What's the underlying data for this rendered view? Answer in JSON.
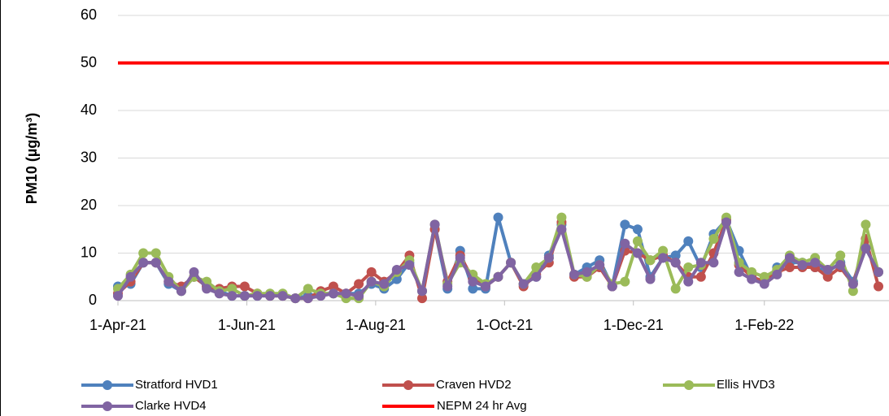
{
  "chart_data": {
    "type": "line",
    "y_label": "PM10 (µg/m³)",
    "x": [
      "2021-04-01",
      "2021-04-07",
      "2021-04-13",
      "2021-04-19",
      "2021-04-25",
      "2021-05-01",
      "2021-05-07",
      "2021-05-13",
      "2021-05-19",
      "2021-05-25",
      "2021-05-31",
      "2021-06-06",
      "2021-06-12",
      "2021-06-18",
      "2021-06-24",
      "2021-06-30",
      "2021-07-06",
      "2021-07-12",
      "2021-07-18",
      "2021-07-24",
      "2021-07-30",
      "2021-08-05",
      "2021-08-11",
      "2021-08-17",
      "2021-08-23",
      "2021-08-29",
      "2021-09-04",
      "2021-09-10",
      "2021-09-16",
      "2021-09-22",
      "2021-09-28",
      "2021-10-04",
      "2021-10-10",
      "2021-10-16",
      "2021-10-22",
      "2021-10-28",
      "2021-11-03",
      "2021-11-09",
      "2021-11-15",
      "2021-11-21",
      "2021-11-27",
      "2021-12-03",
      "2021-12-09",
      "2021-12-15",
      "2021-12-21",
      "2021-12-27",
      "2022-01-02",
      "2022-01-08",
      "2022-01-14",
      "2022-01-20",
      "2022-01-26",
      "2022-02-01",
      "2022-02-07",
      "2022-02-13",
      "2022-02-19",
      "2022-02-25",
      "2022-03-03",
      "2022-03-09",
      "2022-03-15",
      "2022-03-21",
      "2022-03-27"
    ],
    "series": [
      {
        "name": "Stratford HVD1",
        "color": "#4f81bd",
        "values": [
          3,
          3.5,
          8,
          8,
          3.5,
          2,
          5,
          3,
          2,
          1,
          1,
          1,
          1,
          1,
          0.5,
          1,
          1.5,
          1.5,
          1.5,
          1.5,
          3.5,
          2.5,
          4.5,
          8,
          2,
          15,
          2.5,
          10.5,
          2.5,
          2.5,
          17.5,
          8,
          3.5,
          5,
          9.5,
          16,
          5.5,
          7,
          8.5,
          3,
          16,
          15,
          5,
          9,
          9.5,
          12.5,
          7,
          14,
          17,
          10.5,
          5,
          4,
          7,
          8,
          8,
          7,
          6,
          8,
          4,
          11,
          6
        ]
      },
      {
        "name": "Craven HVD2",
        "color": "#c0504d",
        "values": [
          1.5,
          4,
          8,
          8,
          4,
          3,
          5,
          3,
          2.5,
          3,
          3,
          1.5,
          1,
          1,
          0.5,
          0.5,
          2,
          3,
          1.5,
          3.5,
          6,
          4,
          6,
          9.5,
          0.5,
          15,
          4,
          9.5,
          4.5,
          3,
          5,
          8,
          3,
          5.5,
          8,
          16.5,
          5,
          5,
          7,
          3,
          10.5,
          10,
          8.5,
          9.5,
          8,
          5,
          5,
          10,
          17,
          7.5,
          5,
          4,
          6,
          7,
          7,
          7,
          5,
          7,
          3.5,
          13,
          3
        ]
      },
      {
        "name": "Ellis HVD3",
        "color": "#9bbb59",
        "values": [
          2.5,
          5.5,
          10,
          10,
          5,
          2,
          5,
          4,
          2,
          2.5,
          1,
          1.5,
          1.5,
          1.5,
          0.5,
          2.5,
          1.5,
          1.5,
          0.5,
          0.5,
          4,
          3,
          6,
          8.5,
          2,
          16,
          3.5,
          8,
          5.5,
          3.5,
          5,
          8,
          3.5,
          7,
          9,
          17.5,
          5.5,
          5,
          7.5,
          3.5,
          4,
          12.5,
          8.5,
          10.5,
          2.5,
          7,
          7.5,
          13,
          17.5,
          8,
          6,
          5,
          6.5,
          9.5,
          8,
          9,
          6.5,
          9.5,
          2,
          16,
          6
        ]
      },
      {
        "name": "Clarke HVD4",
        "color": "#8064a2",
        "values": [
          1,
          5,
          8,
          8,
          4,
          2,
          6,
          2.5,
          1.5,
          1,
          1,
          1,
          1,
          1,
          0.5,
          0.5,
          1,
          1.5,
          1.5,
          1,
          4,
          3.5,
          6.5,
          7.5,
          2,
          16,
          3,
          9,
          4,
          3,
          5,
          8,
          3.5,
          5,
          9,
          15,
          5.5,
          6,
          7.5,
          3,
          12,
          10,
          4.5,
          9,
          8,
          4,
          8,
          8,
          16.5,
          6,
          4.5,
          3.5,
          5.5,
          9,
          7.5,
          8,
          6.5,
          7.5,
          3.5,
          11,
          6
        ]
      }
    ],
    "reference_line": {
      "name": "NEPM 24 hr Avg",
      "color": "#ff0000",
      "value": 50
    },
    "xlim": [
      "2021-04-01",
      "2022-04-01"
    ],
    "xticks": [
      {
        "value": "2021-04-01",
        "label": "1-Apr-21"
      },
      {
        "value": "2021-06-01",
        "label": "1-Jun-21"
      },
      {
        "value": "2021-08-01",
        "label": "1-Aug-21"
      },
      {
        "value": "2021-10-01",
        "label": "1-Oct-21"
      },
      {
        "value": "2021-12-01",
        "label": "1-Dec-21"
      },
      {
        "value": "2022-02-01",
        "label": "1-Feb-22"
      }
    ],
    "ylim": [
      0,
      60
    ],
    "yticks": [
      0,
      10,
      20,
      30,
      40,
      50,
      60
    ],
    "grid": true,
    "legend": "bottom"
  }
}
